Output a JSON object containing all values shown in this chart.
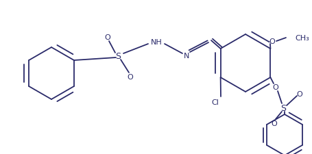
{
  "bg_color": "#ffffff",
  "line_color": "#2a2a6a",
  "lw": 1.3,
  "figsize": [
    4.56,
    2.26
  ],
  "dpi": 100,
  "xlim": [
    0,
    456
  ],
  "ylim": [
    0,
    226
  ]
}
